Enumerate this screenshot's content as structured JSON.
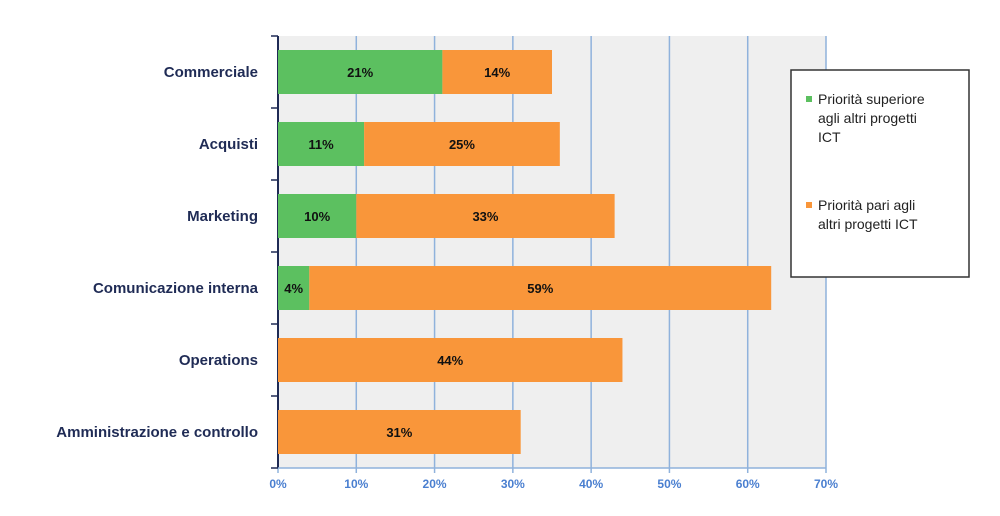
{
  "chart_data": {
    "type": "bar",
    "orientation": "horizontal",
    "stacked": true,
    "categories": [
      "Commerciale",
      "Acquisti",
      "Marketing",
      "Comunicazione interna",
      "Operations",
      "Amministrazione e controllo"
    ],
    "series": [
      {
        "name": "Priorità superiore agli altri progetti ICT",
        "values": [
          21,
          11,
          10,
          4,
          0,
          0
        ],
        "color": "#5cc060",
        "data_labels": [
          "21%",
          "11%",
          "10%",
          "4%",
          "",
          ""
        ]
      },
      {
        "name": "Priorità pari agli altri progetti ICT",
        "values": [
          14,
          25,
          33,
          59,
          44,
          31
        ],
        "color": "#f9963a",
        "data_labels": [
          "14%",
          "25%",
          "33%",
          "59%",
          "44%",
          "31%"
        ]
      }
    ],
    "xlim": [
      0,
      70
    ],
    "x_ticks": [
      0,
      10,
      20,
      30,
      40,
      50,
      60,
      70
    ],
    "x_tick_labels": [
      "0%",
      "10%",
      "20%",
      "30%",
      "40%",
      "50%",
      "60%",
      "70%"
    ],
    "grid": true,
    "legend_position": "right",
    "legend_lines": [
      [
        "Priorità superiore",
        "agli altri progetti",
        "ICT"
      ],
      [
        "Priorità pari agli",
        "altri progetti ICT"
      ]
    ],
    "colors": {
      "plot_background": "#efefef",
      "gridline": "#8fb2dc",
      "axis": "#1f2b55"
    }
  }
}
